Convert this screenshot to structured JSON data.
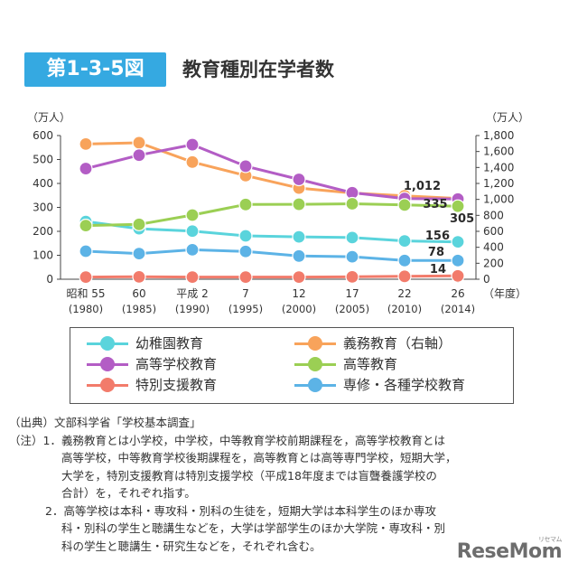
{
  "header": {
    "badge": "第1-3-5図",
    "title": "教育種別在学者数"
  },
  "chart_data": {
    "type": "line",
    "title": "教育種別在学者数",
    "ylabel_left": "（万人）",
    "ylabel_right": "（万人）",
    "xlabel": "（年度）",
    "x_era": [
      "昭和 55",
      "60",
      "平成 2",
      "7",
      "12",
      "17",
      "22",
      "26"
    ],
    "x_western": [
      "(1980)",
      "(1985)",
      "(1990)",
      "(1995)",
      "(2000)",
      "(2005)",
      "(2010)",
      "(2014)"
    ],
    "ylim_left": [
      0,
      600
    ],
    "ylim_right": [
      0,
      1800
    ],
    "yticks_left": [
      "0",
      "100",
      "200",
      "300",
      "400",
      "500",
      "600"
    ],
    "yticks_right": [
      "0",
      "200",
      "400",
      "600",
      "800",
      "1,000",
      "1,200",
      "1,400",
      "1,600",
      "1,800"
    ],
    "grid": false,
    "series": [
      {
        "name": "幼稚園教育",
        "color": "#5ad4dc",
        "axis": "left",
        "values": [
          241,
          211,
          201,
          181,
          177,
          174,
          160,
          156
        ]
      },
      {
        "name": "義務教育（右軸）",
        "color": "#f8a35b",
        "axis": "right",
        "values": [
          1694,
          1710,
          1468,
          1298,
          1142,
          1080,
          1045,
          1012
        ]
      },
      {
        "name": "高等学校教育",
        "color": "#b35dc5",
        "axis": "left",
        "values": [
          462,
          518,
          562,
          472,
          417,
          361,
          337,
          335
        ]
      },
      {
        "name": "高等教育",
        "color": "#9bcf54",
        "axis": "left",
        "values": [
          224,
          229,
          268,
          312,
          313,
          315,
          310,
          305
        ]
      },
      {
        "name": "特別支援教育",
        "color": "#f27b6b",
        "axis": "left",
        "values": [
          9,
          10,
          9,
          9,
          9,
          10,
          12,
          14
        ]
      },
      {
        "name": "専修・各種学校教育",
        "color": "#5cb3e6",
        "axis": "left",
        "values": [
          117,
          107,
          123,
          116,
          97,
          94,
          78,
          78
        ]
      }
    ],
    "data_labels": [
      "1,012",
      "335",
      "305",
      "156",
      "78",
      "14"
    ],
    "legend_position": "bottom"
  },
  "notes": {
    "source": "（出典）文部科学省「学校基本調査」",
    "lines": [
      "（注）1．義務教育とは小学校，中学校，中等教育学校前期課程を，高等学校教育とは",
      "高等学校，中等教育学校後期課程を，高等教育とは高等専門学校，短期大学，",
      "大学を，特別支援教育は特別支援学校（平成18年度までは盲聾養護学校の",
      "合計）を，それぞれ指す。",
      "2．高等学校は本科・専攻科・別科の生徒を，短期大学は本科学生のほか専攻",
      "科・別科の学生と聴講生などを，大学は学部学生のほか大学院・専攻科・別",
      "科の学生と聴講生・研究生などを，それぞれ含む。"
    ]
  },
  "watermark": {
    "text": "ReseMom",
    "small": "リセマム"
  }
}
